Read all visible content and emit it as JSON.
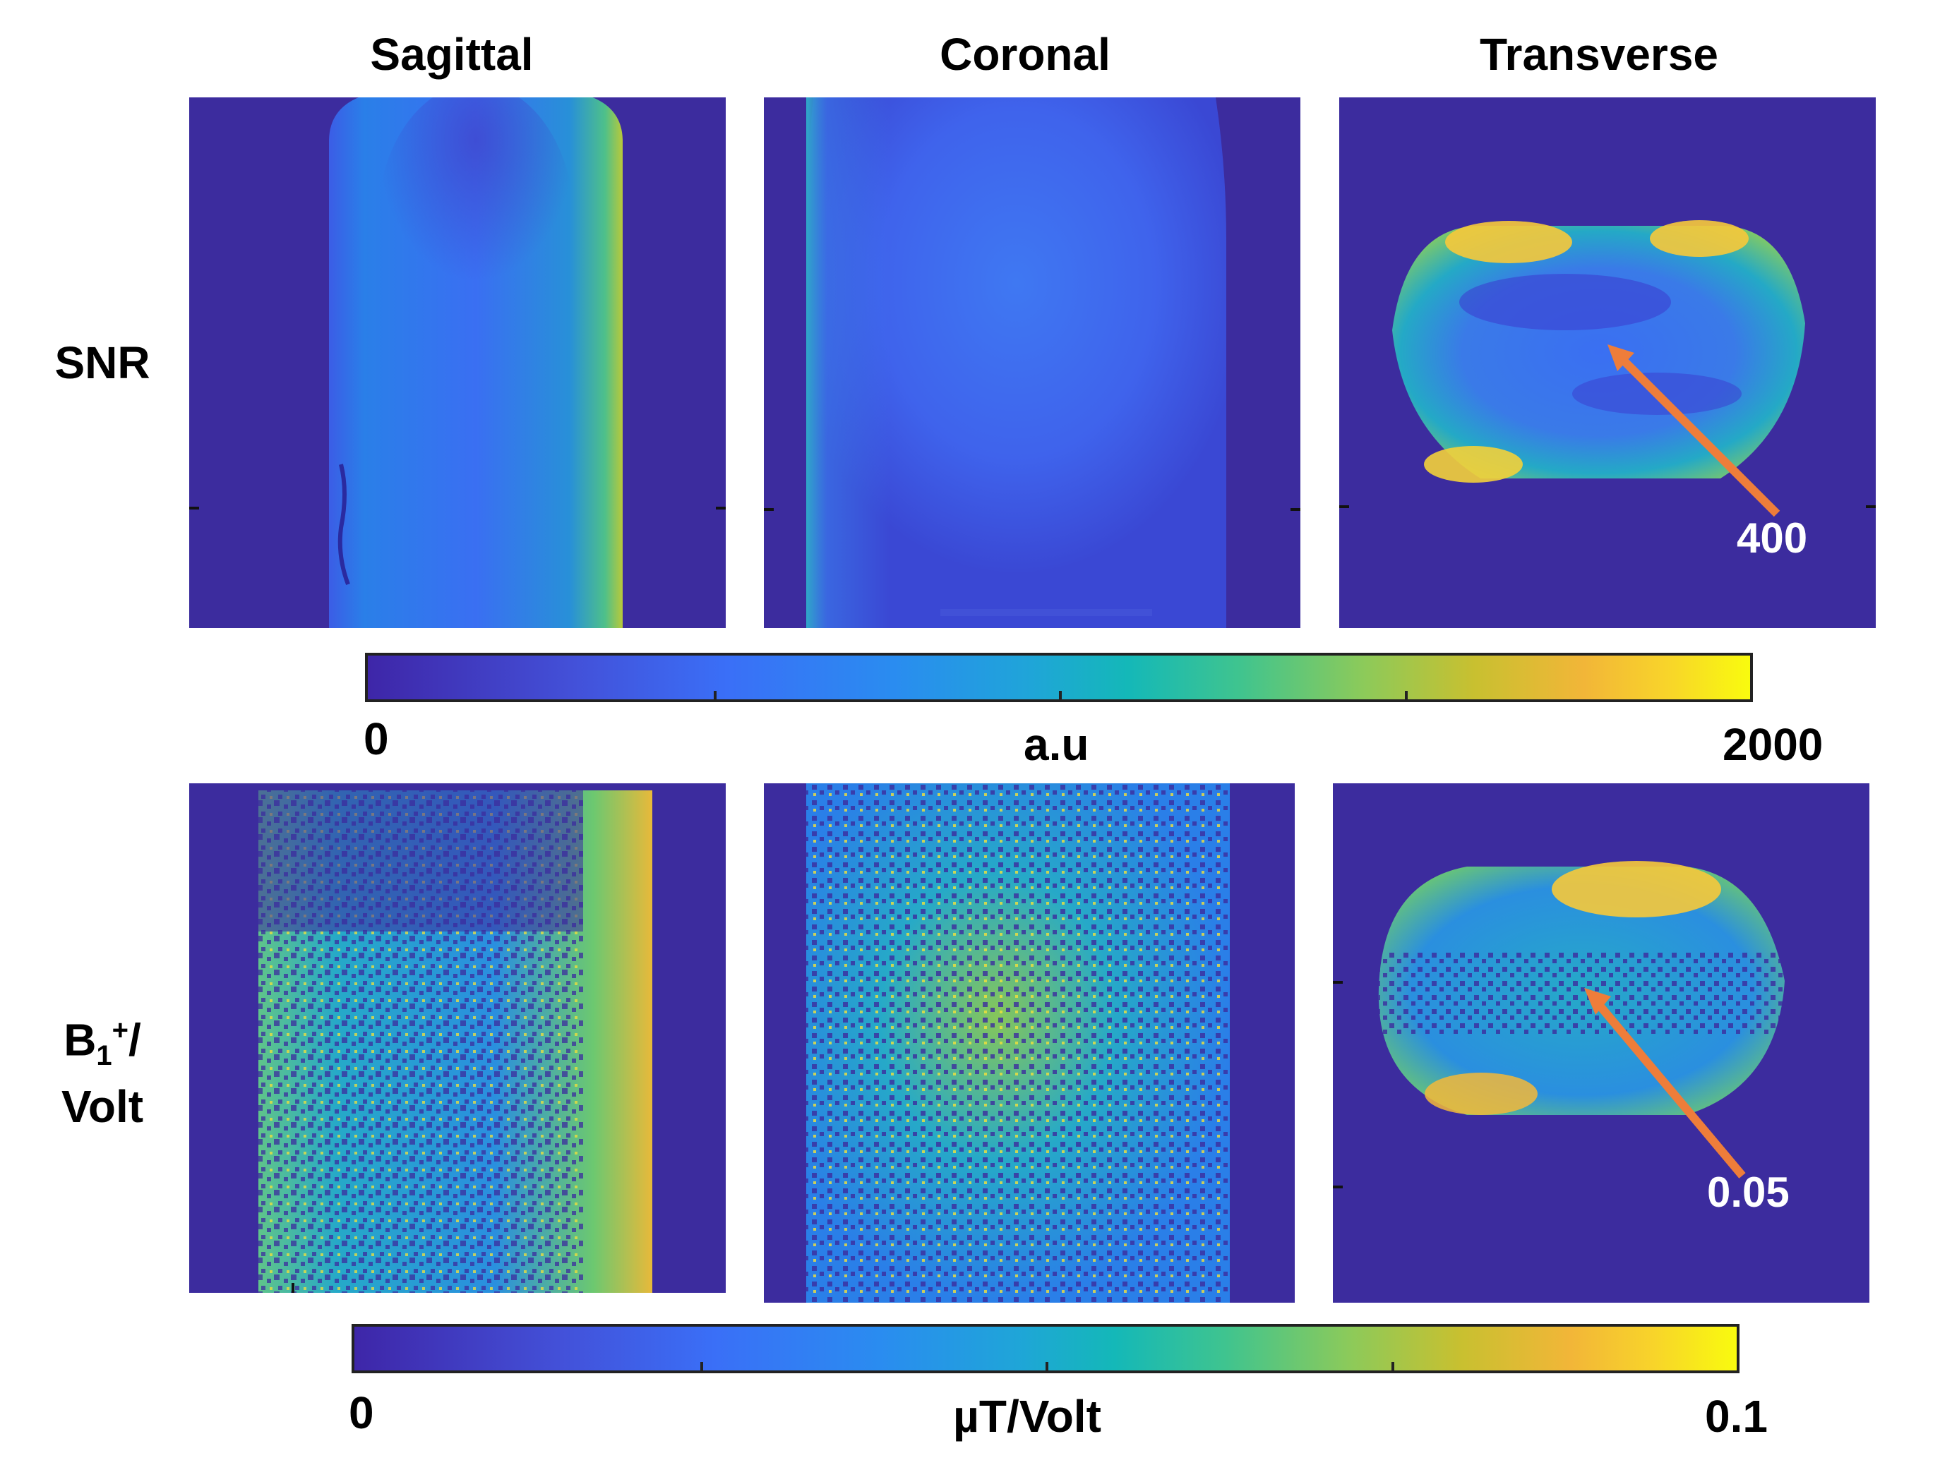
{
  "columns": [
    "Sagittal",
    "Coronal",
    "Transverse"
  ],
  "rows": [
    {
      "label_main": "SNR",
      "label_sub": "",
      "label_sup": "",
      "label_tail": ""
    },
    {
      "label_main": "B",
      "label_sub": "1",
      "label_sup": "+",
      "label_tail": "/",
      "label_line2": "Volt"
    }
  ],
  "colorbars": [
    {
      "min": "0",
      "unit": "a.u",
      "max": "2000"
    },
    {
      "min": "0",
      "unit": "µT/Volt",
      "max": "0.1"
    }
  ],
  "callouts": [
    {
      "value": "400"
    },
    {
      "value": "0.05"
    }
  ],
  "colors": {
    "background_map": "#3c2c9e",
    "arrow": "#ee7d3a",
    "callout_text": "#ffffff"
  }
}
